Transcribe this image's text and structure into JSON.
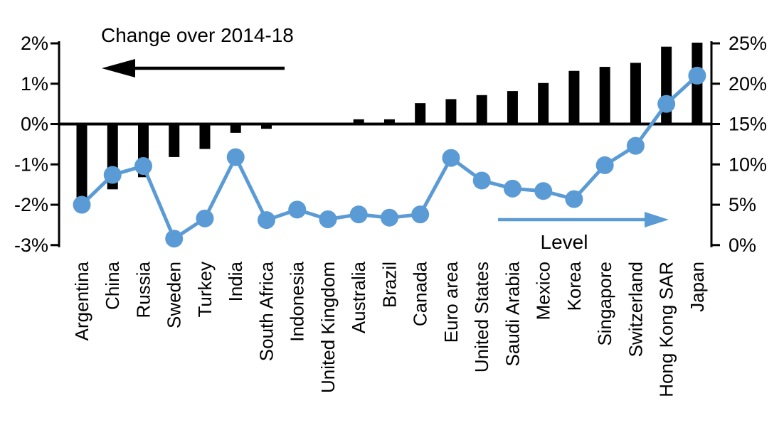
{
  "chart_data": {
    "type": "combo-bar-line",
    "title": "",
    "categories": [
      "Argentina",
      "China",
      "Russia",
      "Sweden",
      "Turkey",
      "India",
      "South Africa",
      "Indonesia",
      "United Kingdom",
      "Australia",
      "Brazil",
      "Canada",
      "Euro area",
      "United States",
      "Saudi Arabia",
      "Mexico",
      "Korea",
      "Singapore",
      "Switzerland",
      "Hong Kong SAR",
      "Japan"
    ],
    "series": [
      {
        "name": "Change over 2014-18",
        "type": "bar",
        "axis": "left",
        "color": "#000000",
        "values": [
          -1.8,
          -1.6,
          -1.3,
          -0.8,
          -0.6,
          -0.2,
          -0.1,
          0.0,
          0.0,
          0.1,
          0.1,
          0.5,
          0.6,
          0.7,
          0.8,
          1.0,
          1.3,
          1.4,
          1.5,
          1.9,
          2.0
        ]
      },
      {
        "name": "Level",
        "type": "line",
        "axis": "right",
        "color": "#5B9BD5",
        "values": [
          5.0,
          8.7,
          9.8,
          0.8,
          3.3,
          10.9,
          3.1,
          4.4,
          3.2,
          3.8,
          3.4,
          3.8,
          10.8,
          8.0,
          7.0,
          6.7,
          5.7,
          9.9,
          12.3,
          17.5,
          21.0
        ]
      }
    ],
    "left_axis": {
      "min": -3,
      "max": 2,
      "tick_step": 1,
      "tick_labels": [
        "2%",
        "1%",
        "0%",
        "-1%",
        "-2%",
        "-3%"
      ],
      "unit": "%"
    },
    "right_axis": {
      "min": 0,
      "max": 25,
      "tick_step": 5,
      "tick_labels": [
        "25%",
        "20%",
        "15%",
        "10%",
        "5%",
        "0%"
      ],
      "unit": "%"
    },
    "annotations": [
      {
        "text": "Change over 2014-18",
        "arrow": "left",
        "color": "#000000"
      },
      {
        "text": "Level",
        "arrow": "right",
        "color": "#5B9BD5"
      }
    ],
    "grid": false,
    "legend_position": "none",
    "background": "#ffffff"
  }
}
